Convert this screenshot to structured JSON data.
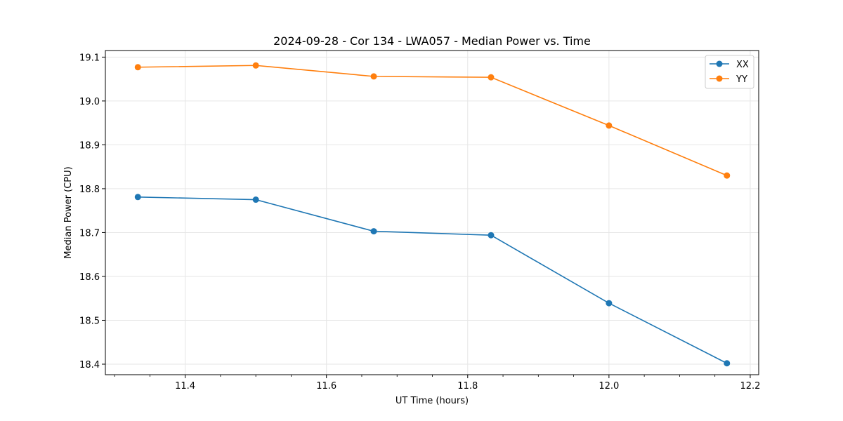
{
  "chart_data": {
    "type": "line",
    "title": "2024-09-28 - Cor 134 - LWA057 - Median Power vs. Time",
    "xlabel": "UT Time (hours)",
    "ylabel": "Median Power (CPU)",
    "xlim": [
      11.287,
      12.212
    ],
    "ylim": [
      18.376,
      19.115
    ],
    "x_ticks": [
      11.4,
      11.6,
      11.8,
      12.0,
      12.2
    ],
    "x_tick_labels": [
      "11.4",
      "11.6",
      "11.8",
      "12.0",
      "12.2"
    ],
    "y_ticks": [
      18.4,
      18.5,
      18.6,
      18.7,
      18.8,
      18.9,
      19.0,
      19.1
    ],
    "y_tick_labels": [
      "18.4",
      "18.5",
      "18.6",
      "18.7",
      "18.8",
      "18.9",
      "19.0",
      "19.1"
    ],
    "grid": true,
    "legend_position": "top-right",
    "x": [
      11.333,
      11.5,
      11.667,
      11.833,
      12.0,
      12.167
    ],
    "series": [
      {
        "name": "XX",
        "color": "#1f77b4",
        "values": [
          18.781,
          18.775,
          18.703,
          18.694,
          18.539,
          18.402
        ]
      },
      {
        "name": "YY",
        "color": "#ff7f0e",
        "values": [
          19.077,
          19.081,
          19.056,
          19.054,
          18.944,
          18.83
        ]
      }
    ]
  }
}
